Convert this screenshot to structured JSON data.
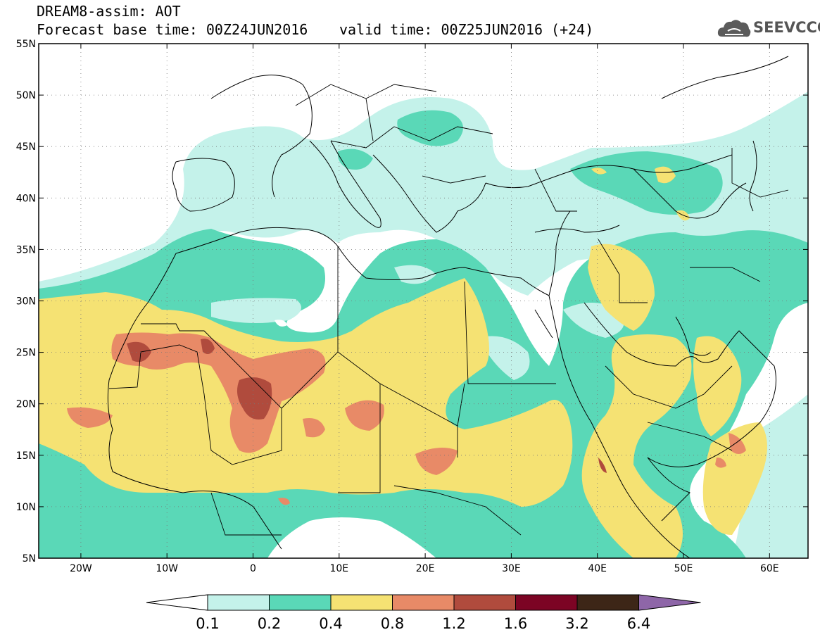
{
  "header": {
    "title_line1": "DREAM8-assim: AOT",
    "title_line2": "Forecast base time: 00Z24JUN2016",
    "title_line3": "valid time: 00Z25JUN2016 (+24)"
  },
  "logo": {
    "text": "SEEVCCC",
    "icon": "cloud-icon"
  },
  "map": {
    "lat_labels": [
      "55N",
      "50N",
      "45N",
      "40N",
      "35N",
      "30N",
      "25N",
      "20N",
      "15N",
      "10N",
      "5N"
    ],
    "lon_labels": [
      "20W",
      "10W",
      "0",
      "10E",
      "20E",
      "30E",
      "40E",
      "50E",
      "60E"
    ]
  },
  "colorbar": {
    "labels": [
      "0.1",
      "0.2",
      "0.4",
      "0.8",
      "1.2",
      "1.6",
      "3.2",
      "6.4"
    ],
    "colors": [
      "#c4f2ea",
      "#5ad8b7",
      "#f5e273",
      "#e88a67",
      "#b04b3d",
      "#7c0424",
      "#3d2617",
      "#8e66a8"
    ],
    "under_color": "#ffffff"
  }
}
